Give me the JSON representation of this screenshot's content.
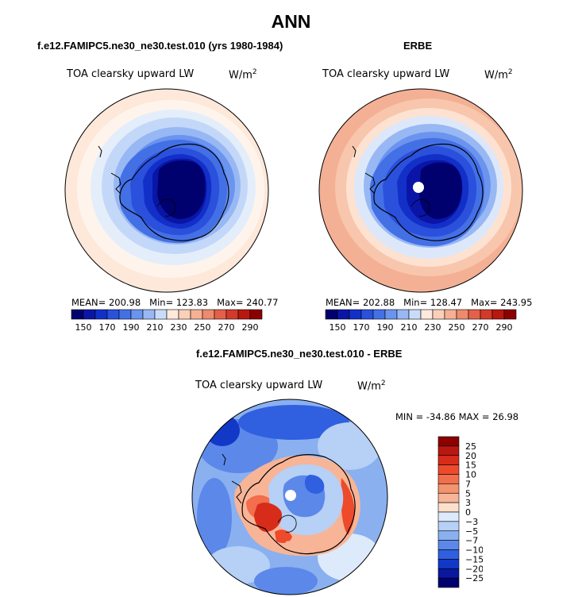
{
  "page": {
    "title": "ANN",
    "colors": {
      "background": "#ffffff",
      "coastline": "#000000",
      "pole_hole": "#ffffff"
    }
  },
  "panels": {
    "model": {
      "title": "f.e12.FAMIPC5.ne30_ne30.test.010 (yrs 1980-1984)",
      "variable": "TOA clearsky upward LW",
      "units_base": "W/m",
      "units_exp": "2",
      "stats": {
        "mean_label": "MEAN=",
        "mean": "200.98",
        "min_label": "Min=",
        "min": "123.83",
        "max_label": "Max=",
        "max": "240.77"
      }
    },
    "obs": {
      "title": "ERBE",
      "variable": "TOA clearsky upward LW",
      "units_base": "W/m",
      "units_exp": "2",
      "stats": {
        "mean_label": "MEAN=",
        "mean": "202.88",
        "min_label": "Min=",
        "min": "128.47",
        "max_label": "Max=",
        "max": "243.95"
      }
    },
    "diff": {
      "title": "f.e12.FAMIPC5.ne30_ne30.test.010 - ERBE",
      "variable": "TOA clearsky upward LW",
      "units_base": "W/m",
      "units_exp": "2",
      "minmax_text": "MIN = -34.86 MAX =  26.98"
    }
  },
  "colorbars": {
    "abs": {
      "labels": [
        "150",
        "170",
        "190",
        "210",
        "230",
        "250",
        "270",
        "290"
      ],
      "colors": [
        "#00006e",
        "#0a15a8",
        "#1230c8",
        "#2a50dc",
        "#4470e6",
        "#6a94ee",
        "#98b8f4",
        "#c8dcfa",
        "#ffe9dc",
        "#fcd0b8",
        "#f6b094",
        "#ee8a6e",
        "#e4604a",
        "#d33a2a",
        "#b81810",
        "#8c0000"
      ]
    },
    "diff": {
      "labels": [
        "25",
        "20",
        "15",
        "10",
        "7",
        "5",
        "3",
        "0",
        "−3",
        "−5",
        "−7",
        "−10",
        "−15",
        "−20",
        "−25"
      ],
      "colors": [
        "#8c0000",
        "#b81810",
        "#d72c1a",
        "#ee4a2c",
        "#f26e4c",
        "#f4946e",
        "#f8b496",
        "#fde0cc",
        "#dceafc",
        "#b6d0f6",
        "#8ab0f0",
        "#5c88ea",
        "#3060e0",
        "#1238c8",
        "#0a18a0",
        "#000070"
      ]
    }
  },
  "chart_data": [
    {
      "type": "heatmap",
      "projection": "south-polar stereographic",
      "title": "f.e12.FAMIPC5.ne30_ne30.test.010 (yrs 1980-1984)",
      "variable": "TOA clearsky upward LW",
      "units": "W/m^2",
      "mean": 200.98,
      "min": 123.83,
      "max": 240.77,
      "contour_levels": [
        150,
        160,
        170,
        180,
        190,
        200,
        210,
        220,
        230,
        240,
        250,
        260,
        270,
        280,
        290
      ]
    },
    {
      "type": "heatmap",
      "projection": "south-polar stereographic",
      "title": "ERBE",
      "variable": "TOA clearsky upward LW",
      "units": "W/m^2",
      "mean": 202.88,
      "min": 128.47,
      "max": 243.95,
      "contour_levels": [
        150,
        160,
        170,
        180,
        190,
        200,
        210,
        220,
        230,
        240,
        250,
        260,
        270,
        280,
        290
      ]
    },
    {
      "type": "heatmap",
      "projection": "south-polar stereographic",
      "title": "f.e12.FAMIPC5.ne30_ne30.test.010 - ERBE",
      "variable": "TOA clearsky upward LW",
      "units": "W/m^2",
      "min": -34.86,
      "max": 26.98,
      "contour_levels": [
        -25,
        -20,
        -15,
        -10,
        -7,
        -5,
        -3,
        0,
        3,
        5,
        7,
        10,
        15,
        20,
        25
      ]
    }
  ]
}
